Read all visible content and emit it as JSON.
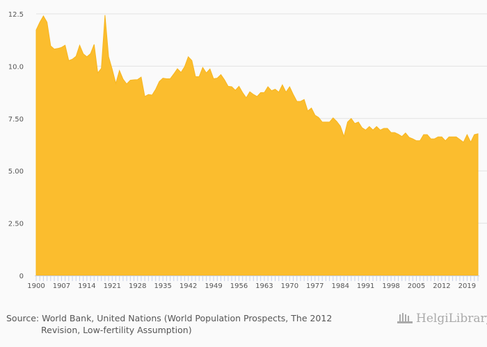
{
  "chart_data": {
    "type": "area",
    "title": "",
    "xlabel": "",
    "ylabel": "",
    "ylim": [
      0,
      12.5
    ],
    "xlim": [
      1900,
      2022
    ],
    "yticks": [
      "0",
      "2.50",
      "5.00",
      "7.50",
      "10.0",
      "12.5"
    ],
    "ytick_values": [
      0,
      2.5,
      5,
      7.5,
      10,
      12.5
    ],
    "xticks": [
      "1900",
      "1907",
      "1914",
      "1921",
      "1928",
      "1935",
      "1942",
      "1949",
      "1956",
      "1963",
      "1970",
      "1977",
      "1984",
      "1991",
      "1998",
      "2005",
      "2012",
      "2019"
    ],
    "grid": true,
    "color": "#fbbd2e",
    "x_start": 1900,
    "values": [
      11.73,
      12.1,
      12.4,
      12.1,
      10.97,
      10.82,
      10.85,
      10.9,
      11.0,
      10.27,
      10.33,
      10.47,
      11.0,
      10.59,
      10.45,
      10.6,
      11.04,
      9.68,
      9.9,
      12.44,
      10.45,
      9.85,
      9.18,
      9.79,
      9.38,
      9.15,
      9.33,
      9.35,
      9.36,
      9.48,
      8.55,
      8.65,
      8.62,
      8.9,
      9.27,
      9.43,
      9.4,
      9.4,
      9.63,
      9.88,
      9.7,
      9.98,
      10.45,
      10.27,
      9.5,
      9.5,
      9.94,
      9.68,
      9.87,
      9.4,
      9.43,
      9.6,
      9.35,
      9.04,
      9.02,
      8.85,
      9.04,
      8.74,
      8.49,
      8.78,
      8.65,
      8.55,
      8.74,
      8.74,
      9.02,
      8.83,
      8.9,
      8.76,
      9.11,
      8.76,
      9.02,
      8.65,
      8.32,
      8.32,
      8.41,
      7.86,
      8.0,
      7.66,
      7.55,
      7.33,
      7.33,
      7.33,
      7.53,
      7.36,
      7.14,
      6.64,
      7.33,
      7.5,
      7.26,
      7.33,
      7.06,
      6.95,
      7.12,
      6.95,
      7.12,
      6.95,
      7.03,
      7.03,
      6.83,
      6.83,
      6.75,
      6.64,
      6.81,
      6.6,
      6.53,
      6.44,
      6.44,
      6.73,
      6.73,
      6.53,
      6.53,
      6.62,
      6.62,
      6.44,
      6.62,
      6.62,
      6.62,
      6.5,
      6.37,
      6.73,
      6.37,
      6.73,
      6.77
    ]
  },
  "footer": {
    "source_line1": "Source: World Bank, United Nations (World Population Prospects, The 2012",
    "source_line2": "Revision, Low-fertility Assumption)",
    "logo_text": "HelgiLibrary."
  }
}
